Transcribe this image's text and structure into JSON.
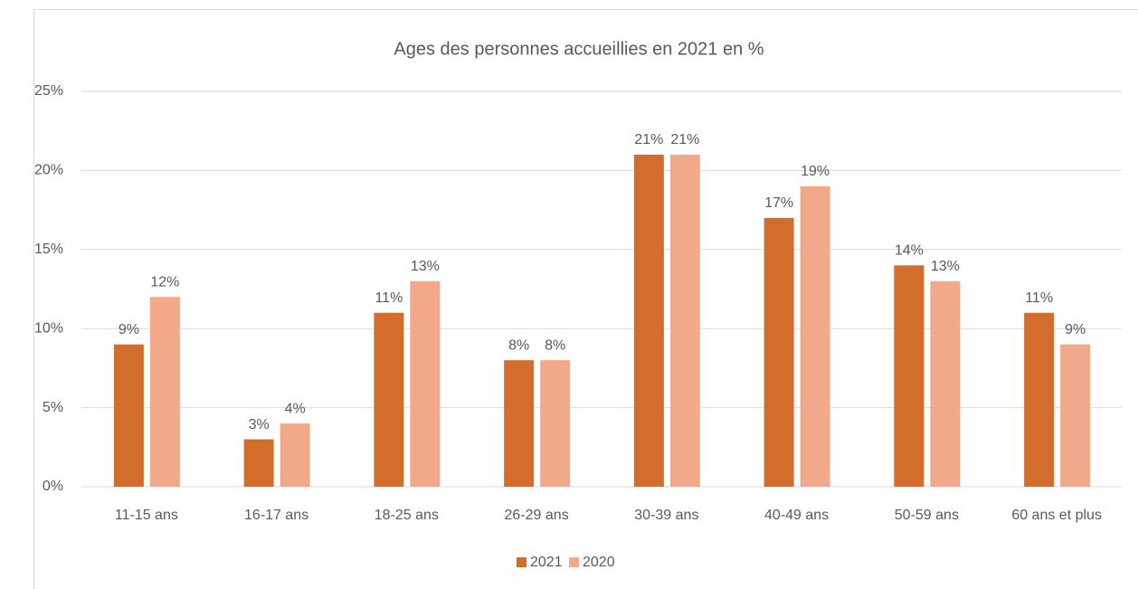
{
  "chart_data": {
    "type": "bar",
    "title": "Ages des personnes accueillies en 2021 en %",
    "categories": [
      "11-15 ans",
      "16-17 ans",
      "18-25 ans",
      "26-29 ans",
      "30-39 ans",
      "40-49 ans",
      "50-59 ans",
      "60 ans et plus"
    ],
    "series": [
      {
        "name": "2021",
        "color": "#d36d2b",
        "values": [
          9,
          3,
          11,
          8,
          21,
          17,
          14,
          11
        ],
        "value_labels": [
          "9%",
          "3%",
          "11%",
          "8%",
          "21%",
          "17%",
          "14%",
          "11%"
        ]
      },
      {
        "name": "2020",
        "color": "#f1a98a",
        "values": [
          12,
          4,
          13,
          8,
          21,
          19,
          13,
          9
        ],
        "value_labels": [
          "12%",
          "4%",
          "13%",
          "8%",
          "21%",
          "19%",
          "13%",
          "9%"
        ]
      }
    ],
    "ylim": [
      0,
      25
    ],
    "yticks": [
      {
        "value": 0,
        "label": "0%"
      },
      {
        "value": 5,
        "label": "5%"
      },
      {
        "value": 10,
        "label": "10%"
      },
      {
        "value": 15,
        "label": "15%"
      },
      {
        "value": 20,
        "label": "20%"
      },
      {
        "value": 25,
        "label": "25%"
      }
    ],
    "grid": true,
    "legend": "bottom"
  }
}
